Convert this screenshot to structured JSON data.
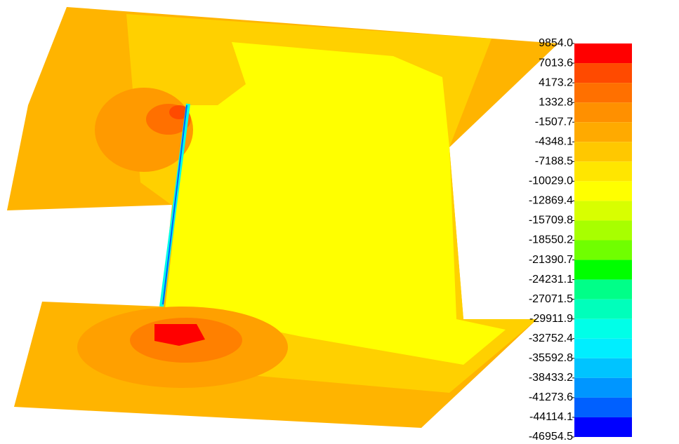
{
  "chart_data": {
    "type": "contour",
    "yticks": [
      {
        "value": 9854.0,
        "label": "9854.0"
      },
      7013.6,
      4173.2,
      1332.8,
      -1507.7,
      -4348.1,
      -7188.5,
      {
        "value": -10029.0,
        "label": "-10029.0"
      },
      -12869.4,
      -15709.8,
      -18550.2,
      -21390.7,
      -24231.1,
      -27071.5,
      -29911.9,
      -32752.4,
      -35592.8,
      -38433.2,
      -41273.6,
      -44114.1,
      -46954.5
    ],
    "ylim": [
      -46954.5,
      9854.0
    ],
    "colors": [
      "#ff0000",
      "#ff4a00",
      "#ff7000",
      "#ff9000",
      "#ffaa00",
      "#ffc800",
      "#ffe600",
      "#ffff00",
      "#d8ff00",
      "#a8ff00",
      "#70ff00",
      "#00ff00",
      "#00ff88",
      "#00ffbb",
      "#00ffe8",
      "#00eeff",
      "#00c4ff",
      "#0096ff",
      "#0060ff",
      "#0000ff"
    ]
  }
}
